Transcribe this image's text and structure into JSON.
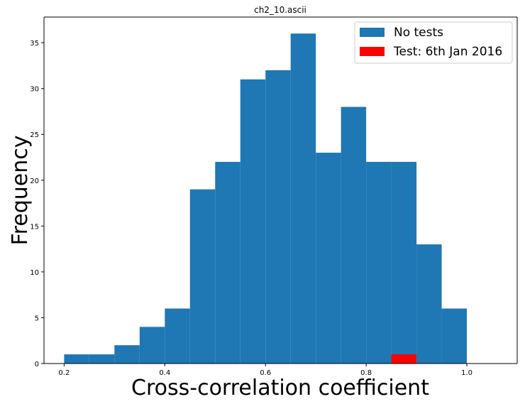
{
  "chart_data": {
    "type": "bar",
    "title": "ch2_10.ascii",
    "xlabel": "Cross-correlation coefficient",
    "ylabel": "Frequency",
    "xlim": [
      0.16,
      1.1
    ],
    "ylim": [
      0,
      37.8
    ],
    "x_ticks": [
      0.2,
      0.4,
      0.6,
      0.8,
      1.0
    ],
    "x_tick_labels": [
      "0.2",
      "0.4",
      "0.6",
      "0.8",
      "1.0"
    ],
    "y_ticks": [
      0,
      5,
      10,
      15,
      20,
      25,
      30,
      35
    ],
    "y_tick_labels": [
      "0",
      "5",
      "10",
      "15",
      "20",
      "25",
      "30",
      "35"
    ],
    "grid": false,
    "legend_position": "top-right",
    "series": [
      {
        "name": "No tests",
        "color": "#1f77b4",
        "bin_edges": [
          0.2,
          0.25,
          0.3,
          0.35,
          0.4,
          0.45,
          0.5,
          0.55,
          0.6,
          0.65,
          0.7,
          0.75,
          0.8,
          0.85,
          0.9,
          0.95,
          1.0
        ],
        "values": [
          1,
          1,
          2,
          4,
          6,
          19,
          22,
          31,
          32,
          36,
          23,
          28,
          22,
          22,
          13,
          6
        ]
      },
      {
        "name": "Test: 6th Jan 2016",
        "color": "#ff0000",
        "bin_edges": [
          0.85,
          0.9
        ],
        "values": [
          1
        ]
      }
    ]
  }
}
